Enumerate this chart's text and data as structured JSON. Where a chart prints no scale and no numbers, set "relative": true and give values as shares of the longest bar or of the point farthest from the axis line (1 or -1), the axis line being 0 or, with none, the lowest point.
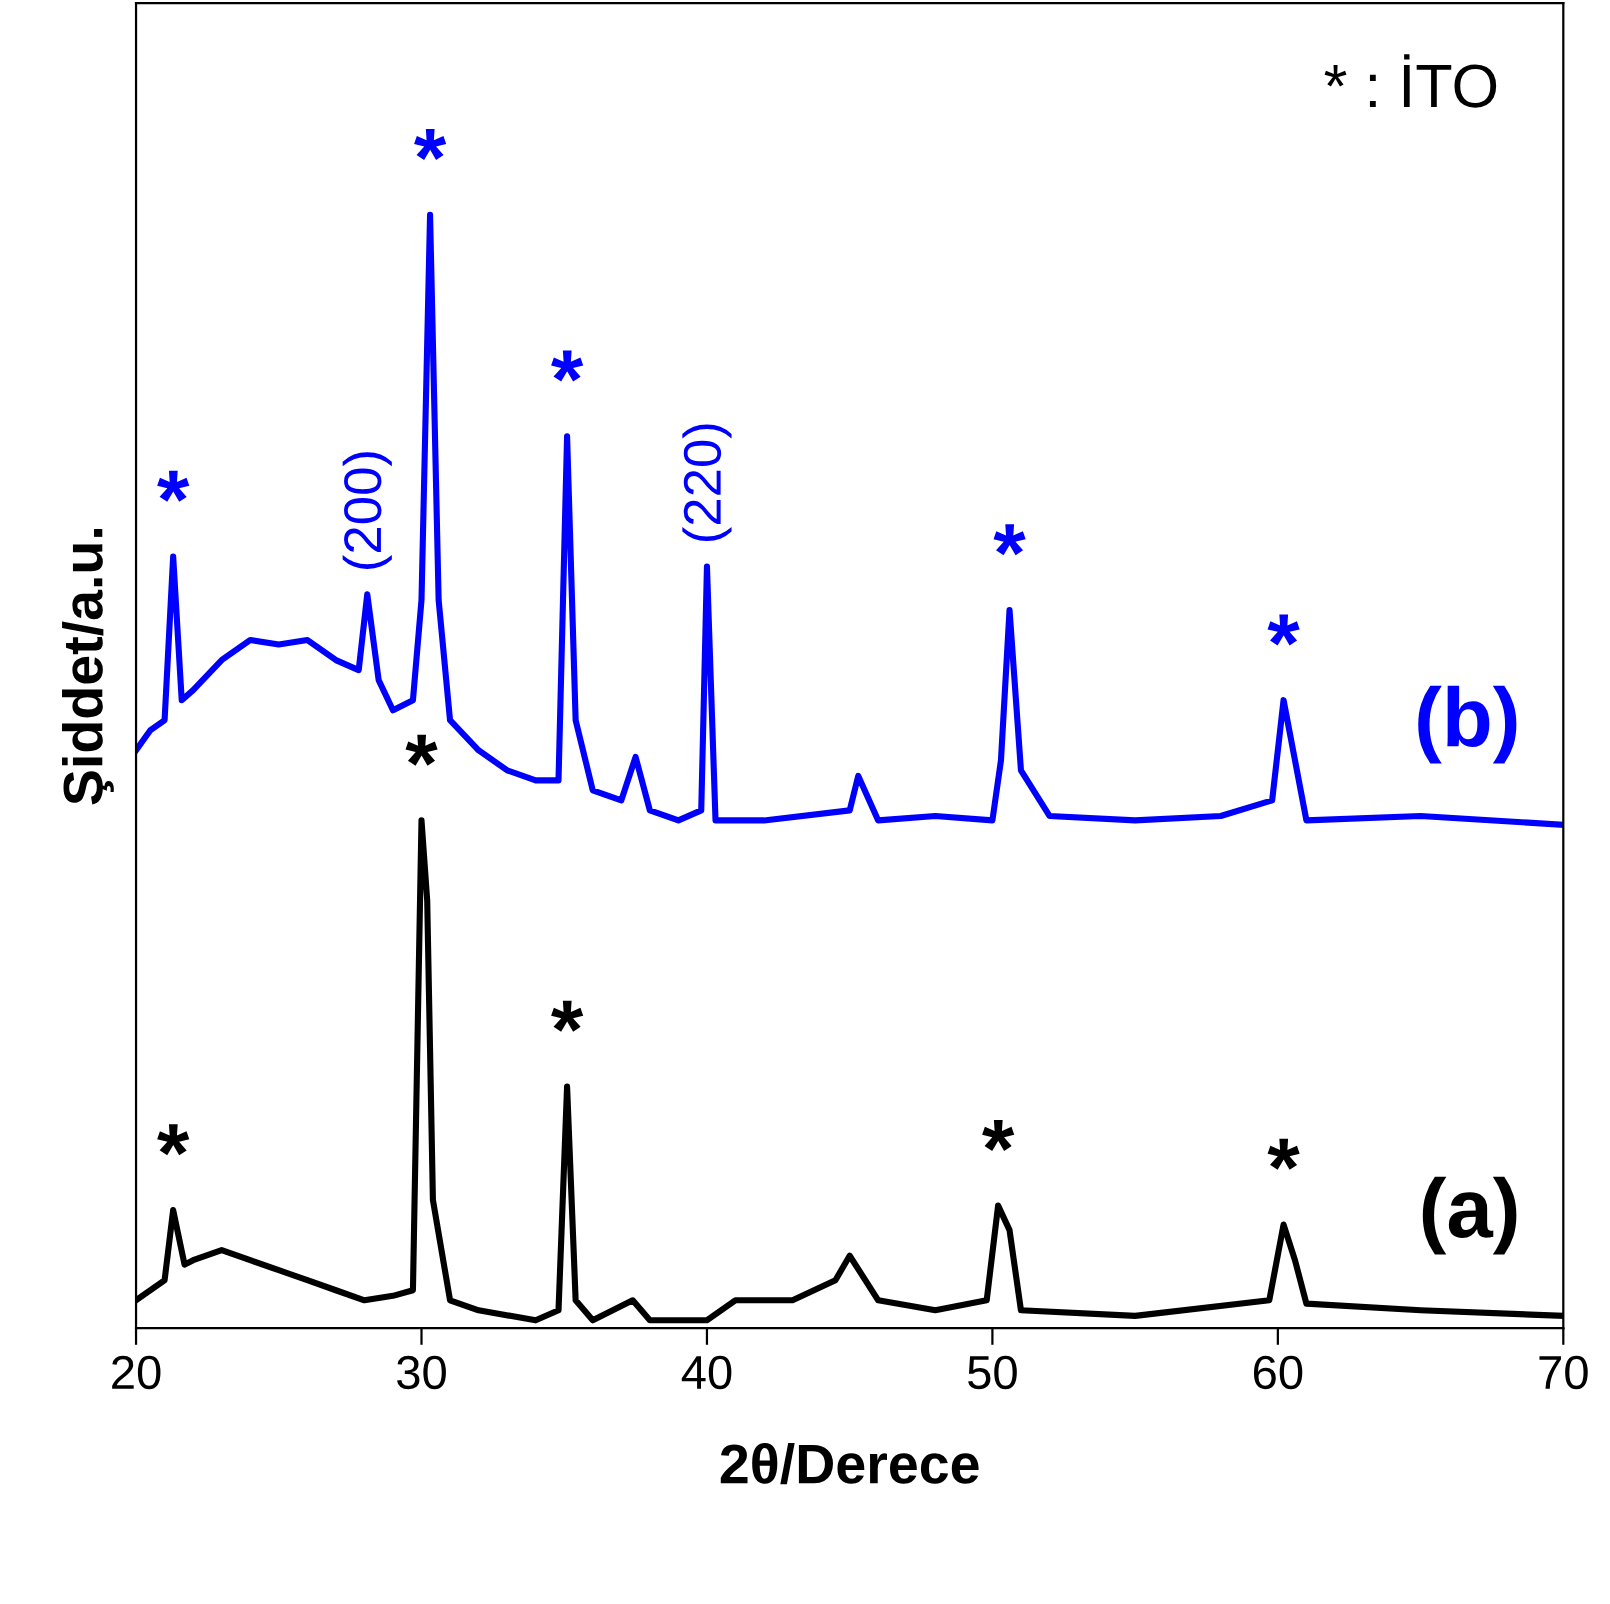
{
  "chart_data": {
    "type": "line",
    "xlabel": "2θ/Derece",
    "ylabel": "Şiddet/a.u.",
    "relative": true,
    "xlim": [
      20,
      70
    ],
    "xticks": [
      20,
      30,
      40,
      50,
      60,
      70
    ],
    "grid": false,
    "legend": false,
    "marker": "none",
    "line_style": "solid",
    "series": [
      {
        "name": "(b)",
        "color": "#0000ff",
        "x": [
          20,
          20.5,
          21,
          21.3,
          21.6,
          22,
          23,
          24,
          25,
          26,
          27,
          27.8,
          28.1,
          28.5,
          29,
          29.7,
          30.0,
          30.3,
          30.6,
          31,
          32,
          33,
          34,
          34.8,
          35.1,
          35.4,
          36,
          37,
          37.5,
          38,
          39,
          39.8,
          40.0,
          40.3,
          42,
          45,
          45.3,
          46,
          48,
          50,
          50.3,
          50.6,
          51,
          52,
          55,
          58,
          59.8,
          60.2,
          60.6,
          61,
          65,
          70
        ],
        "values": [
          0.519,
          0.537,
          0.546,
          0.693,
          0.564,
          0.573,
          0.6,
          0.618,
          0.614,
          0.618,
          0.6,
          0.591,
          0.659,
          0.582,
          0.555,
          0.564,
          0.654,
          1.0,
          0.654,
          0.546,
          0.519,
          0.501,
          0.492,
          0.492,
          0.801,
          0.546,
          0.483,
          0.474,
          0.513,
          0.465,
          0.456,
          0.465,
          0.684,
          0.456,
          0.456,
          0.465,
          0.496,
          0.456,
          0.46,
          0.456,
          0.51,
          0.645,
          0.501,
          0.46,
          0.456,
          0.46,
          0.474,
          0.564,
          0.51,
          0.456,
          0.46,
          0.452
        ]
      },
      {
        "name": "(a)",
        "color": "#000000",
        "x": [
          20,
          21,
          21.3,
          21.7,
          22,
          23,
          24,
          25,
          26,
          27,
          28,
          29,
          29.7,
          30.0,
          30.2,
          30.4,
          31,
          32,
          34,
          34.8,
          35.1,
          35.4,
          36,
          37.4,
          38,
          40,
          41,
          43,
          44.5,
          45,
          46,
          48,
          49.8,
          50.2,
          50.6,
          51,
          55,
          59.7,
          60.2,
          60.6,
          61,
          65,
          70
        ],
        "values": [
          0.025,
          0.043,
          0.106,
          0.057,
          0.061,
          0.07,
          0.061,
          0.052,
          0.043,
          0.034,
          0.025,
          0.029,
          0.034,
          0.456,
          0.384,
          0.115,
          0.025,
          0.016,
          0.007,
          0.016,
          0.217,
          0.025,
          0.007,
          0.025,
          0.007,
          0.007,
          0.025,
          0.025,
          0.043,
          0.065,
          0.025,
          0.016,
          0.025,
          0.11,
          0.088,
          0.016,
          0.011,
          0.025,
          0.093,
          0.061,
          0.022,
          0.016,
          0.011
        ]
      }
    ],
    "annotations": [
      {
        "text": "*",
        "x": 21.3,
        "y": 0.693
      },
      {
        "text": "*",
        "x": 30.3,
        "y": 1.0
      },
      {
        "text": "*",
        "x": 35.1,
        "y": 0.801
      },
      {
        "text": "*",
        "x": 50.6,
        "y": 0.645
      },
      {
        "text": "*",
        "x": 60.2,
        "y": 0.564
      },
      {
        "text": "(200)",
        "x": 28.1,
        "y": 0.659
      },
      {
        "text": "(220)",
        "x": 40.0,
        "y": 0.684
      },
      {
        "text": "*",
        "x": 21.3,
        "y": 0.106
      },
      {
        "text": "*",
        "x": 30.0,
        "y": 0.456
      },
      {
        "text": "*",
        "x": 35.1,
        "y": 0.217
      },
      {
        "text": "*",
        "x": 50.2,
        "y": 0.11
      },
      {
        "text": "*",
        "x": 60.2,
        "y": 0.093
      },
      "* : İTO"
    ]
  }
}
